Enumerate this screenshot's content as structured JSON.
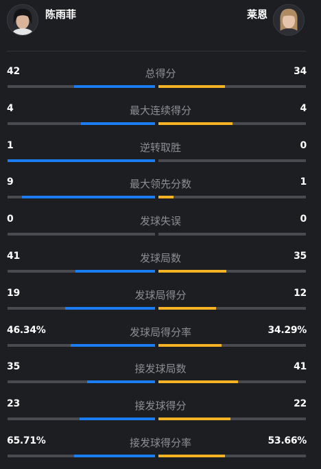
{
  "players": {
    "left": {
      "name": "陈雨菲",
      "color": "#1a7ef2"
    },
    "right": {
      "name": "莱恩",
      "color": "#f5b225"
    }
  },
  "stats": [
    {
      "label": "总得分",
      "left": "42",
      "right": "34",
      "left_share": 0.55,
      "right_share": 0.45
    },
    {
      "label": "最大连续得分",
      "left": "4",
      "right": "4",
      "left_share": 0.5,
      "right_share": 0.5
    },
    {
      "label": "逆转取胜",
      "left": "1",
      "right": "0",
      "left_share": 1.0,
      "right_share": 0.0
    },
    {
      "label": "最大领先分数",
      "left": "9",
      "right": "1",
      "left_share": 0.9,
      "right_share": 0.1
    },
    {
      "label": "发球失误",
      "left": "0",
      "right": "0",
      "left_share": 0.0,
      "right_share": 0.0
    },
    {
      "label": "发球局数",
      "left": "41",
      "right": "35",
      "left_share": 0.54,
      "right_share": 0.46
    },
    {
      "label": "发球局得分",
      "left": "19",
      "right": "12",
      "left_share": 0.61,
      "right_share": 0.39
    },
    {
      "label": "发球局得分率",
      "left": "46.34%",
      "right": "34.29%",
      "left_share": 0.57,
      "right_share": 0.43
    },
    {
      "label": "接发球局数",
      "left": "35",
      "right": "41",
      "left_share": 0.46,
      "right_share": 0.54
    },
    {
      "label": "接发球得分",
      "left": "23",
      "right": "22",
      "left_share": 0.51,
      "right_share": 0.49
    },
    {
      "label": "接发球得分率",
      "left": "65.71%",
      "right": "53.66%",
      "left_share": 0.55,
      "right_share": 0.45
    }
  ]
}
